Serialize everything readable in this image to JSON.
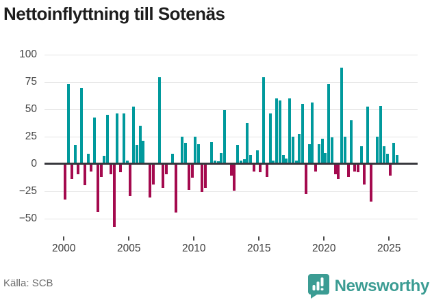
{
  "title": "Nettoinflyttning till Sotenäs",
  "source": "Källa: SCB",
  "branding": {
    "name": "Newsworthy"
  },
  "colors": {
    "positive_bar": "#00999c",
    "negative_bar": "#a40a4e",
    "zero_axis": "#37383d",
    "gridline": "#e3e3e3",
    "brand_teal": "#3b9c93",
    "title_text": "#1d1d1d",
    "tick_text": "#3d3d3d",
    "source_text": "#6e6e6e"
  },
  "chart_data": {
    "type": "bar",
    "title": "Nettoinflyttning till Sotenäs",
    "xlabel": "",
    "ylabel": "",
    "start_period": "2000-Q1",
    "frequency": "quarterly",
    "values": [
      -32,
      73,
      -13,
      17,
      -9,
      69,
      -19,
      9,
      -6,
      42,
      -43,
      -11,
      7,
      45,
      -9,
      -57,
      46,
      -7,
      46,
      3,
      -29,
      52,
      17,
      35,
      21,
      0,
      -30,
      -18,
      0,
      79,
      -21,
      -9,
      0,
      9,
      -44,
      0,
      25,
      19,
      -23,
      -12,
      25,
      18,
      -25,
      -21,
      0,
      20,
      3,
      2,
      10,
      49,
      0,
      -10,
      -24,
      17,
      3,
      4,
      37,
      8,
      -6,
      12,
      -7,
      79,
      -11,
      46,
      3,
      60,
      58,
      8,
      5,
      60,
      25,
      3,
      27,
      55,
      -27,
      18,
      56,
      -6,
      18,
      23,
      10,
      73,
      24,
      -9,
      -13,
      88,
      25,
      -11,
      40,
      -6,
      -7,
      16,
      -18,
      52,
      -34,
      0,
      25,
      53,
      16,
      9,
      -10,
      19,
      8
    ],
    "y_ticks": [
      100,
      75,
      50,
      25,
      0,
      -25,
      -50
    ],
    "y_tick_labels": [
      "100",
      "75",
      "50",
      "25",
      "0",
      "−25",
      "−50"
    ],
    "x_ticks": [
      2000,
      2005,
      2010,
      2015,
      2020,
      2025
    ],
    "x_tick_labels": [
      "2000",
      "2005",
      "2010",
      "2015",
      "2020",
      "2025"
    ],
    "ylim": [
      -60,
      100
    ],
    "grid": true,
    "legend": "none"
  }
}
